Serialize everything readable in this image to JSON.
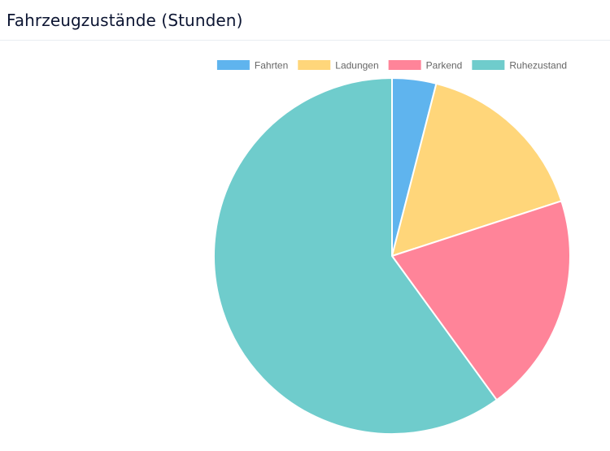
{
  "card": {
    "title": "Fahrzeugzustände (Stunden)"
  },
  "chart_data": {
    "type": "pie",
    "title": "",
    "categories": [
      "Fahrten",
      "Ladungen",
      "Parkend",
      "Ruhezustand"
    ],
    "values": [
      4,
      16,
      20,
      60
    ],
    "colors": [
      "#5fb4ee",
      "#ffd67a",
      "#ff8499",
      "#6fcccc"
    ],
    "legend_position": "top",
    "start_angle_deg": -90,
    "slice_border_color": "#ffffff"
  }
}
